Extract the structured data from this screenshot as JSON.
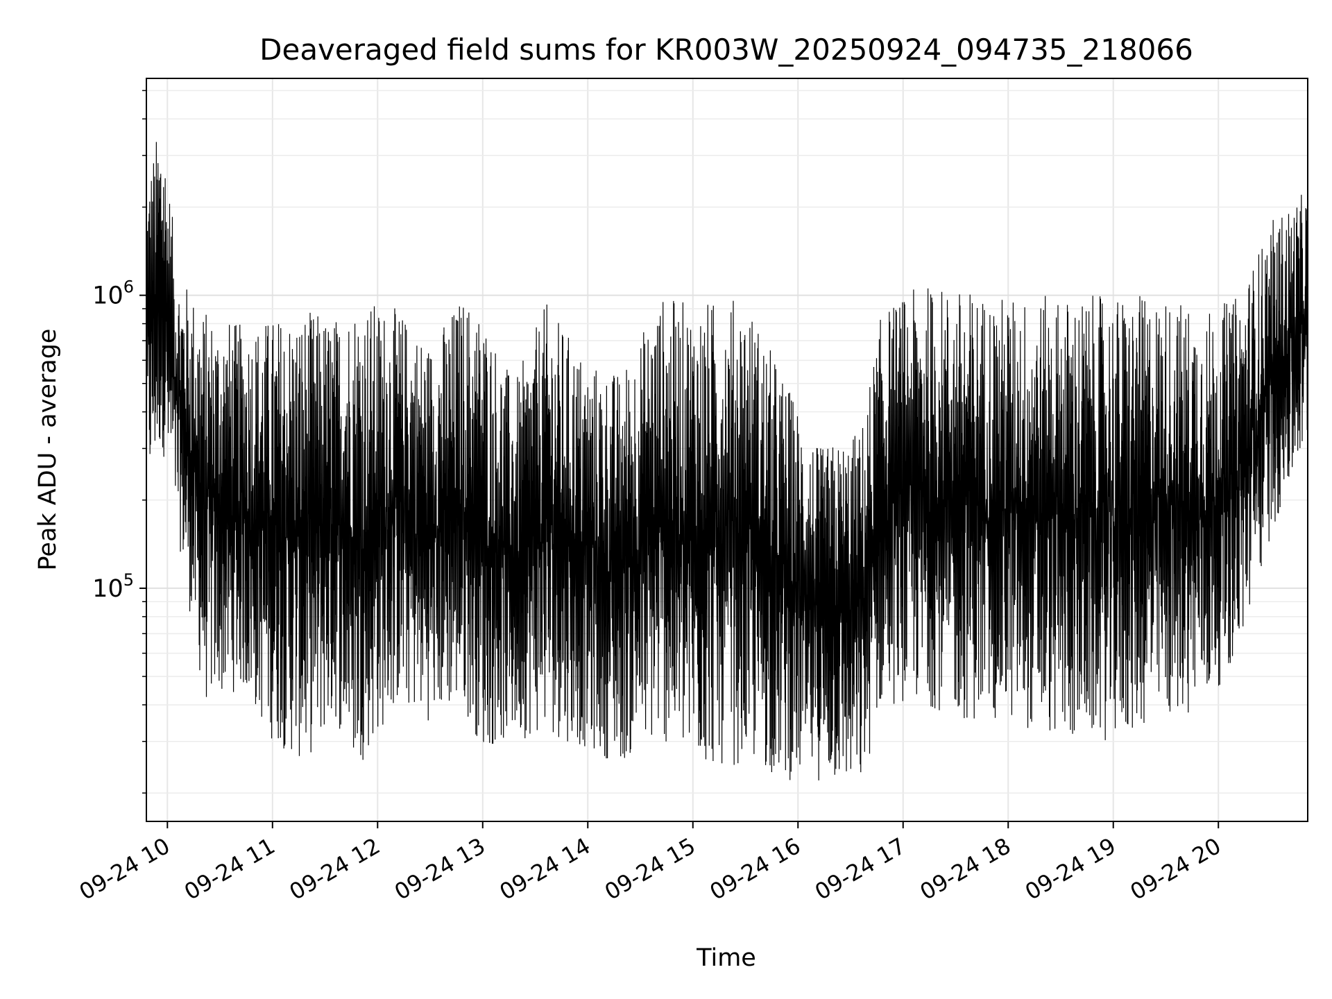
{
  "chart_data": {
    "type": "line",
    "title": "Deaveraged field sums for KR003W_20250924_094735_218066",
    "xlabel": "Time",
    "ylabel": "Peak ADU - average",
    "yscale": "log",
    "ylim": [
      16000,
      5500000
    ],
    "xlim_hours": [
      9.8,
      20.85
    ],
    "x_ticks": [
      {
        "hour": 10,
        "label": "09-24 10"
      },
      {
        "hour": 11,
        "label": "09-24 11"
      },
      {
        "hour": 12,
        "label": "09-24 12"
      },
      {
        "hour": 13,
        "label": "09-24 13"
      },
      {
        "hour": 14,
        "label": "09-24 14"
      },
      {
        "hour": 15,
        "label": "09-24 15"
      },
      {
        "hour": 16,
        "label": "09-24 16"
      },
      {
        "hour": 17,
        "label": "09-24 17"
      },
      {
        "hour": 18,
        "label": "09-24 18"
      },
      {
        "hour": 19,
        "label": "09-24 19"
      },
      {
        "hour": 20,
        "label": "09-24 20"
      }
    ],
    "y_ticks": [
      {
        "value": 100000,
        "base": "10",
        "exp": "5"
      },
      {
        "value": 1000000,
        "base": "10",
        "exp": "6"
      }
    ],
    "grid": true,
    "legend": "none",
    "line_color": "#000000",
    "envelope": [
      {
        "hour": 9.8,
        "low": 200000,
        "high": 2500000
      },
      {
        "hour": 9.95,
        "low": 300000,
        "high": 4200000
      },
      {
        "hour": 10.1,
        "low": 150000,
        "high": 1200000
      },
      {
        "hour": 10.35,
        "low": 40000,
        "high": 900000
      },
      {
        "hour": 10.7,
        "low": 45000,
        "high": 800000
      },
      {
        "hour": 11.0,
        "low": 30000,
        "high": 850000
      },
      {
        "hour": 11.3,
        "low": 25000,
        "high": 900000
      },
      {
        "hour": 11.6,
        "low": 35000,
        "high": 850000
      },
      {
        "hour": 11.8,
        "low": 24000,
        "high": 1000000
      },
      {
        "hour": 12.2,
        "low": 40000,
        "high": 900000
      },
      {
        "hour": 12.5,
        "low": 35000,
        "high": 700000
      },
      {
        "hour": 12.8,
        "low": 40000,
        "high": 1000000
      },
      {
        "hour": 13.0,
        "low": 28000,
        "high": 900000
      },
      {
        "hour": 13.3,
        "low": 30000,
        "high": 500000
      },
      {
        "hour": 13.6,
        "low": 32000,
        "high": 950000
      },
      {
        "hour": 14.0,
        "low": 28000,
        "high": 600000
      },
      {
        "hour": 14.3,
        "low": 25000,
        "high": 550000
      },
      {
        "hour": 14.7,
        "low": 30000,
        "high": 1000000
      },
      {
        "hour": 15.0,
        "low": 24000,
        "high": 950000
      },
      {
        "hour": 15.5,
        "low": 25000,
        "high": 1000000
      },
      {
        "hour": 15.9,
        "low": 22000,
        "high": 500000
      },
      {
        "hour": 16.2,
        "low": 22000,
        "high": 300000
      },
      {
        "hour": 16.6,
        "low": 20000,
        "high": 350000
      },
      {
        "hour": 16.8,
        "low": 40000,
        "high": 900000
      },
      {
        "hour": 17.2,
        "low": 40000,
        "high": 1100000
      },
      {
        "hour": 17.6,
        "low": 35000,
        "high": 1050000
      },
      {
        "hour": 18.0,
        "low": 35000,
        "high": 1000000
      },
      {
        "hour": 18.5,
        "low": 30000,
        "high": 1000000
      },
      {
        "hour": 19.0,
        "low": 30000,
        "high": 1000000
      },
      {
        "hour": 19.5,
        "low": 35000,
        "high": 1000000
      },
      {
        "hour": 19.9,
        "low": 40000,
        "high": 900000
      },
      {
        "hour": 20.2,
        "low": 60000,
        "high": 1000000
      },
      {
        "hour": 20.5,
        "low": 150000,
        "high": 1800000
      },
      {
        "hour": 20.85,
        "low": 300000,
        "high": 2300000
      }
    ]
  }
}
